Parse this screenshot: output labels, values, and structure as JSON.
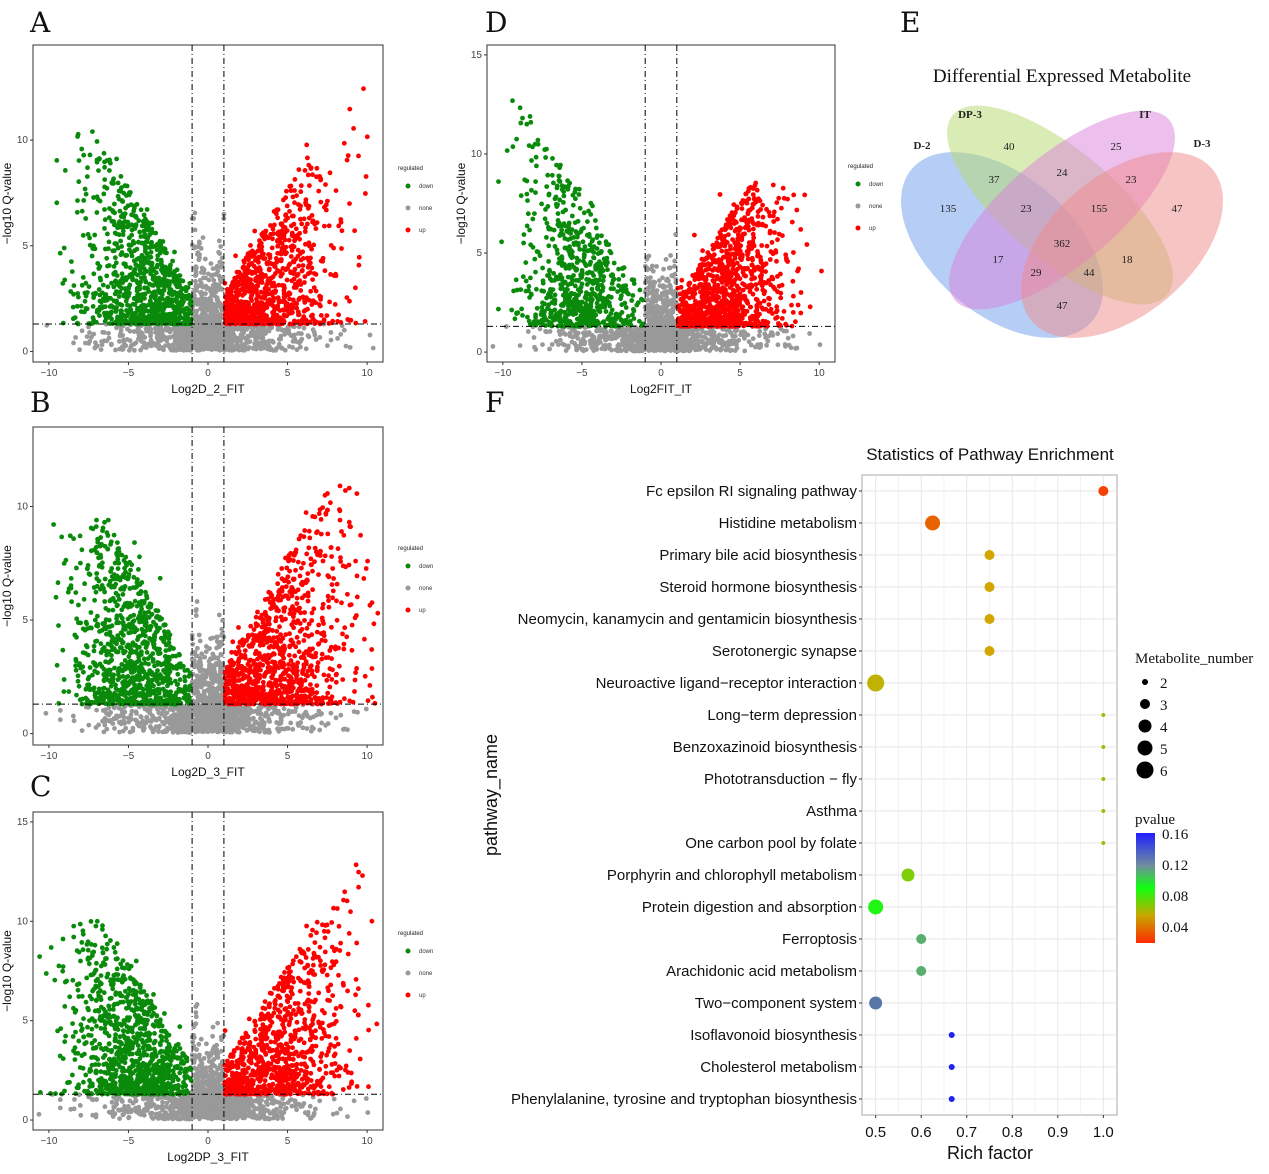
{
  "panel_labels": [
    "A",
    "B",
    "C",
    "D",
    "E",
    "F"
  ],
  "chart_data": [
    {
      "id": "A",
      "type": "scatter",
      "title": "",
      "xlabel": "Log2D_2_FIT",
      "ylabel": "-log10 Q-value",
      "xlim": [
        -11,
        11
      ],
      "ylim": [
        -0.5,
        14.5
      ],
      "xticks": [
        -10,
        -5,
        0,
        5,
        10
      ],
      "yticks": [
        0,
        5,
        10
      ],
      "fc_threshold": 1,
      "q_threshold": 1.3,
      "legend": {
        "title": "regulated",
        "entries": [
          "down",
          "none",
          "up"
        ]
      },
      "groups": {
        "down": {
          "n": 900,
          "xmean": -4.2,
          "xsd": 2.0,
          "ymax": 10.4
        },
        "none": {
          "n": 1300
        },
        "up": {
          "n": 900,
          "xmean": 3.8,
          "xsd": 2.2,
          "ymax": 13.8
        }
      }
    },
    {
      "id": "B",
      "type": "scatter",
      "title": "",
      "xlabel": "Log2D_3_FIT",
      "ylabel": "-log10 Q-value",
      "xlim": [
        -11,
        11
      ],
      "ylim": [
        -0.5,
        13.5
      ],
      "xticks": [
        -10,
        -5,
        0,
        5,
        10
      ],
      "yticks": [
        0,
        5,
        10
      ],
      "fc_threshold": 1,
      "q_threshold": 1.3,
      "legend": {
        "title": "regulated",
        "entries": [
          "down",
          "none",
          "up"
        ]
      },
      "groups": {
        "down": {
          "n": 900,
          "xmean": -4.8,
          "xsd": 1.9,
          "ymax": 9.4
        },
        "none": {
          "n": 1300
        },
        "up": {
          "n": 1000,
          "xmean": 4.5,
          "xsd": 2.4,
          "ymax": 12.2
        }
      }
    },
    {
      "id": "C",
      "type": "scatter",
      "title": "",
      "xlabel": "Log2DP_3_FIT",
      "ylabel": "-log10 Q-value",
      "xlim": [
        -11,
        11
      ],
      "ylim": [
        -0.5,
        15.5
      ],
      "xticks": [
        -10,
        -5,
        0,
        5,
        10
      ],
      "yticks": [
        0,
        5,
        10,
        15
      ],
      "fc_threshold": 1,
      "q_threshold": 1.3,
      "legend": {
        "title": "regulated",
        "entries": [
          "down",
          "none",
          "up"
        ]
      },
      "groups": {
        "down": {
          "n": 950,
          "xmean": -5.0,
          "xsd": 1.9,
          "ymax": 10.0
        },
        "none": {
          "n": 1300
        },
        "up": {
          "n": 900,
          "xmean": 4.6,
          "xsd": 2.3,
          "ymax": 13.3
        }
      }
    },
    {
      "id": "D",
      "type": "scatter",
      "title": "",
      "xlabel": "Log2FIT_IT",
      "ylabel": "-log10 Q-value",
      "xlim": [
        -11,
        11
      ],
      "ylim": [
        -0.5,
        15.5
      ],
      "xticks": [
        -10,
        -5,
        0,
        5,
        10
      ],
      "yticks": [
        0,
        5,
        10,
        15
      ],
      "fc_threshold": 1,
      "q_threshold": 1.3,
      "legend": {
        "title": "regulated",
        "entries": [
          "down",
          "none",
          "up"
        ]
      },
      "groups": {
        "down": {
          "n": 700,
          "xmean": -5.5,
          "xsd": 1.8,
          "ymax": 12.9
        },
        "none": {
          "n": 1300
        },
        "up": {
          "n": 1000,
          "xmean": 4.2,
          "xsd": 1.8,
          "ymax": 8.7
        }
      }
    },
    {
      "id": "E",
      "type": "venn",
      "title": "Differential Expressed Metabolite",
      "sets": [
        "D-2",
        "DP-3",
        "IT",
        "D-3"
      ],
      "regions": [
        {
          "sets": [
            "DP-3"
          ],
          "value": 40
        },
        {
          "sets": [
            "IT"
          ],
          "value": 25
        },
        {
          "sets": [
            "D-2",
            "DP-3"
          ],
          "value": 37
        },
        {
          "sets": [
            "DP-3",
            "IT"
          ],
          "value": 24
        },
        {
          "sets": [
            "IT",
            "D-3"
          ],
          "value": 23
        },
        {
          "sets": [
            "D-2"
          ],
          "value": 135
        },
        {
          "sets": [
            "D-2",
            "DP-3",
            "IT"
          ],
          "value": 23
        },
        {
          "sets": [
            "DP-3",
            "IT",
            "D-3"
          ],
          "value": 155
        },
        {
          "sets": [
            "D-3"
          ],
          "value": 47
        },
        {
          "sets": [
            "D-2",
            "DP-3",
            "IT",
            "D-3"
          ],
          "value": 362
        },
        {
          "sets": [
            "D-2",
            "IT"
          ],
          "value": 17
        },
        {
          "sets": [
            "DP-3",
            "D-3"
          ],
          "value": 18
        },
        {
          "sets": [
            "D-2",
            "IT",
            "D-3"
          ],
          "value": 29
        },
        {
          "sets": [
            "D-2",
            "DP-3",
            "D-3"
          ],
          "value": 44
        },
        {
          "sets": [
            "D-2",
            "D-3"
          ],
          "value": 47
        }
      ]
    },
    {
      "id": "F",
      "type": "scatter",
      "title": "Statistics of Pathway Enrichment",
      "xlabel": "Rich factor",
      "ylabel": "pathway_name",
      "xlim": [
        0.47,
        1.03
      ],
      "xticks": [
        0.5,
        0.6,
        0.7,
        0.8,
        0.9,
        1.0
      ],
      "xtick_labels": [
        "0.5",
        "0.6",
        "0.7",
        "0.8",
        "0.9",
        "1.0"
      ],
      "size_legend": {
        "title": "Metabolite_number",
        "values": [
          2,
          3,
          4,
          5,
          6
        ]
      },
      "color_legend": {
        "title": "pvalue",
        "ticks": [
          "0.16",
          "0.12",
          "0.08",
          "0.04"
        ],
        "range": [
          0.0,
          0.17
        ]
      },
      "pathways": [
        {
          "name": "Fc epsilon RI signaling pathway",
          "rich": 1.0,
          "n": 3,
          "p": 0.01
        },
        {
          "name": "Histidine metabolism",
          "rich": 0.625,
          "n": 5,
          "p": 0.02
        },
        {
          "name": "Primary bile acid biosynthesis",
          "rich": 0.75,
          "n": 3,
          "p": 0.04
        },
        {
          "name": "Steroid hormone biosynthesis",
          "rich": 0.75,
          "n": 3,
          "p": 0.04
        },
        {
          "name": "Neomycin, kanamycin and gentamicin biosynthesis",
          "rich": 0.75,
          "n": 3,
          "p": 0.04
        },
        {
          "name": "Serotonergic synapse",
          "rich": 0.75,
          "n": 3,
          "p": 0.04
        },
        {
          "name": "Neuroactive ligand−receptor interaction",
          "rich": 0.5,
          "n": 6,
          "p": 0.045
        },
        {
          "name": "Long−term depression",
          "rich": 1.0,
          "n": 1,
          "p": 0.05
        },
        {
          "name": "Benzoxazinoid biosynthesis",
          "rich": 1.0,
          "n": 1,
          "p": 0.05
        },
        {
          "name": "Phototransduction − fly",
          "rich": 1.0,
          "n": 1,
          "p": 0.05
        },
        {
          "name": "Asthma",
          "rich": 1.0,
          "n": 1,
          "p": 0.05
        },
        {
          "name": "One carbon pool by folate",
          "rich": 1.0,
          "n": 1,
          "p": 0.05
        },
        {
          "name": "Porphyrin and chlorophyll metabolism",
          "rich": 0.571,
          "n": 4,
          "p": 0.06
        },
        {
          "name": "Protein digestion and absorption",
          "rich": 0.5,
          "n": 5,
          "p": 0.08
        },
        {
          "name": "Ferroptosis",
          "rich": 0.6,
          "n": 3,
          "p": 0.11
        },
        {
          "name": "Arachidonic acid metabolism",
          "rich": 0.6,
          "n": 3,
          "p": 0.11
        },
        {
          "name": "Two−component system",
          "rich": 0.5,
          "n": 4,
          "p": 0.13
        },
        {
          "name": "Isoflavonoid biosynthesis",
          "rich": 0.667,
          "n": 2,
          "p": 0.16
        },
        {
          "name": "Cholesterol metabolism",
          "rich": 0.667,
          "n": 2,
          "p": 0.16
        },
        {
          "name": "Phenylalanine, tyrosine and tryptophan biosynthesis",
          "rich": 0.667,
          "n": 2,
          "p": 0.16
        }
      ]
    }
  ],
  "colors": {
    "down": "#0a8a0a",
    "none": "#999999",
    "up": "#ff0000"
  }
}
